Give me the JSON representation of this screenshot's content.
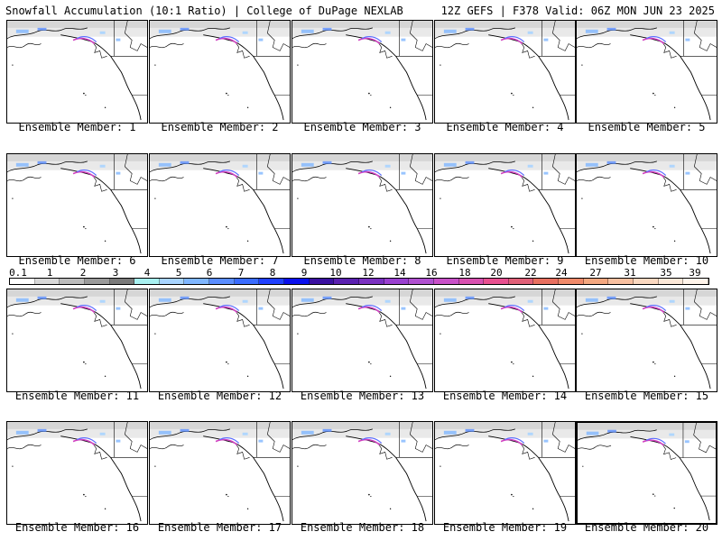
{
  "header": {
    "left": "Snowfall Accumulation (10:1 Ratio) | College of DuPage NEXLAB",
    "right": "12Z GEFS | F378 Valid: 06Z MON JUN 23 2025"
  },
  "member_prefix": "Ensemble Member:",
  "members": [
    "1",
    "2",
    "3",
    "4",
    "5",
    "6",
    "7",
    "8",
    "9",
    "10",
    "11",
    "12",
    "13",
    "14",
    "15",
    "16",
    "17",
    "18",
    "19",
    "20"
  ],
  "selected_member": "20",
  "legend": {
    "labels": [
      "0.1",
      "1",
      "2",
      "3",
      "4",
      "5",
      "6",
      "7",
      "8",
      "9",
      "10",
      "12",
      "14",
      "16",
      "18",
      "20",
      "22",
      "24",
      "27",
      "31",
      "35",
      "39"
    ],
    "colors": [
      "#ffffff",
      "#d8d8d8",
      "#bcbcbc",
      "#9a9a9a",
      "#7a7a7a",
      "#a8f0f0",
      "#a8d4ff",
      "#7fb6ff",
      "#5a8dff",
      "#3a6cff",
      "#2040ff",
      "#0a10ee",
      "#3a10a0",
      "#5a20b0",
      "#7a30c0",
      "#9a40d0",
      "#b050d0",
      "#c850c8",
      "#d850b0",
      "#e85090",
      "#e06078",
      "#e87060",
      "#f08a6a",
      "#f4a880",
      "#f8c0a0",
      "#fad8c0",
      "#fce8d8",
      "#fff4ea"
    ]
  }
}
